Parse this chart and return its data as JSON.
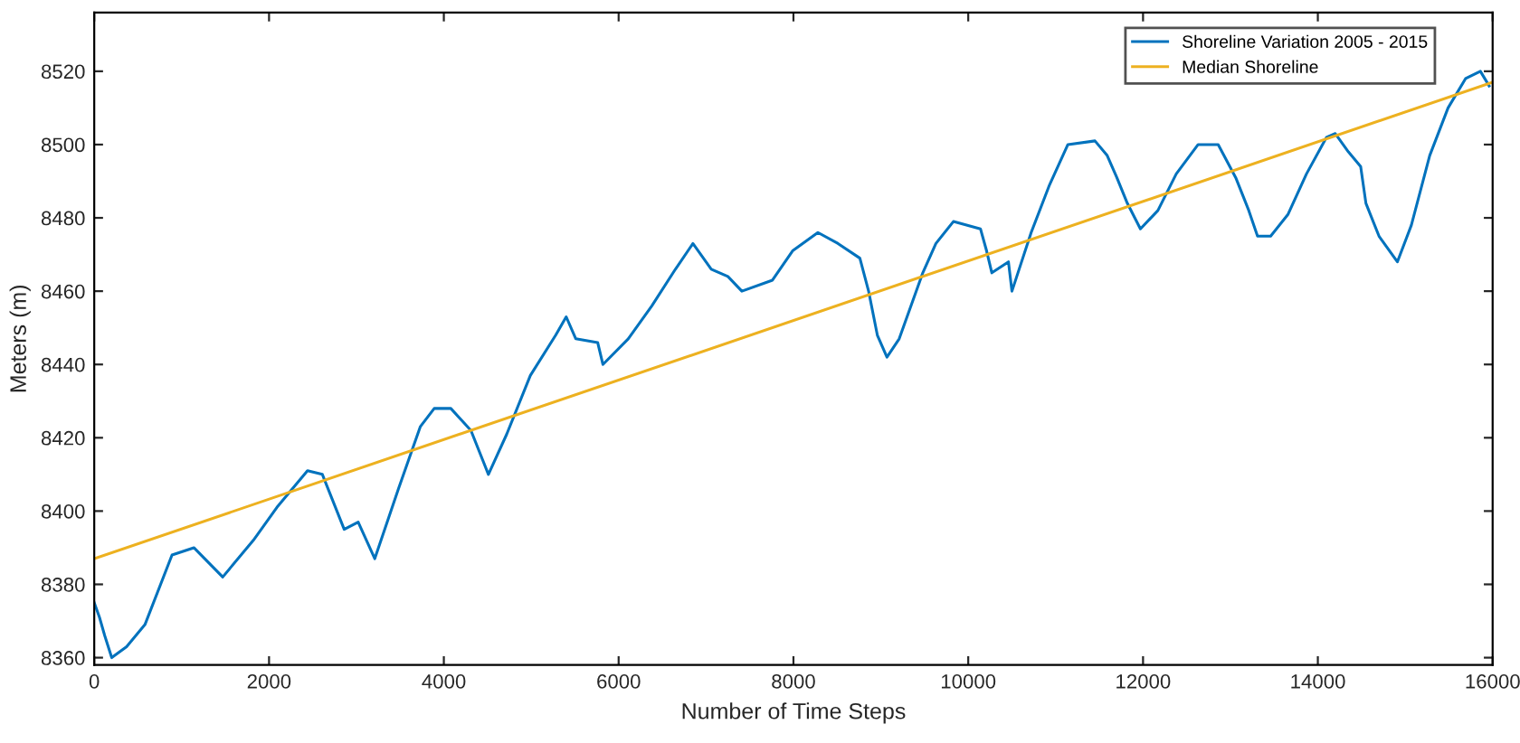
{
  "chart_data": {
    "type": "line",
    "xlabel": "Number of Time Steps",
    "ylabel": "Meters (m)",
    "xlim": [
      0,
      16000
    ],
    "ylim": [
      8358,
      8536
    ],
    "xticks": [
      0,
      2000,
      4000,
      6000,
      8000,
      10000,
      12000,
      14000,
      16000
    ],
    "yticks": [
      8360,
      8380,
      8400,
      8420,
      8440,
      8460,
      8480,
      8500,
      8520
    ],
    "legend": "top right",
    "grid": false,
    "series": [
      {
        "name": "Shoreline Variation 2005 - 2015",
        "color": "#0072bd",
        "x": [
          0,
          60,
          120,
          200,
          370,
          580,
          890,
          1140,
          1470,
          1820,
          2090,
          2440,
          2610,
          2860,
          3020,
          3210,
          3480,
          3730,
          3890,
          4080,
          4310,
          4510,
          4720,
          4990,
          5280,
          5400,
          5510,
          5760,
          5820,
          6110,
          6380,
          6650,
          6850,
          7060,
          7250,
          7410,
          7760,
          7990,
          8280,
          8510,
          8760,
          8860,
          8960,
          9070,
          9210,
          9480,
          9630,
          9830,
          10140,
          10210,
          10270,
          10460,
          10500,
          10720,
          10930,
          11140,
          11450,
          11590,
          11700,
          11820,
          11970,
          12170,
          12380,
          12630,
          12860,
          13060,
          13210,
          13310,
          13460,
          13660,
          13870,
          14100,
          14200,
          14350,
          14490,
          14550,
          14700,
          14910,
          15070,
          15280,
          15490,
          15690,
          15860,
          15960
        ],
        "values": [
          8375,
          8371,
          8366,
          8360,
          8363,
          8369,
          8388,
          8390,
          8382,
          8392,
          8401,
          8411,
          8410,
          8395,
          8397,
          8387,
          8406,
          8423,
          8428,
          8428,
          8422,
          8410,
          8421,
          8437,
          8448,
          8453,
          8447,
          8446,
          8440,
          8447,
          8456,
          8466,
          8473,
          8466,
          8464,
          8460,
          8463,
          8471,
          8476,
          8473,
          8469,
          8460,
          8448,
          8442,
          8447,
          8465,
          8473,
          8479,
          8477,
          8471,
          8465,
          8468,
          8460,
          8476,
          8489,
          8500,
          8501,
          8497,
          8491,
          8484,
          8477,
          8482,
          8492,
          8500,
          8500,
          8491,
          8482,
          8475,
          8475,
          8481,
          8492,
          8502,
          8503,
          8498,
          8494,
          8484,
          8475,
          8468,
          8478,
          8497,
          8510,
          8518,
          8520,
          8516
        ]
      },
      {
        "name": "Median Shoreline",
        "color": "#edb120",
        "x": [
          0,
          16000
        ],
        "values": [
          8387,
          8517
        ]
      }
    ]
  }
}
